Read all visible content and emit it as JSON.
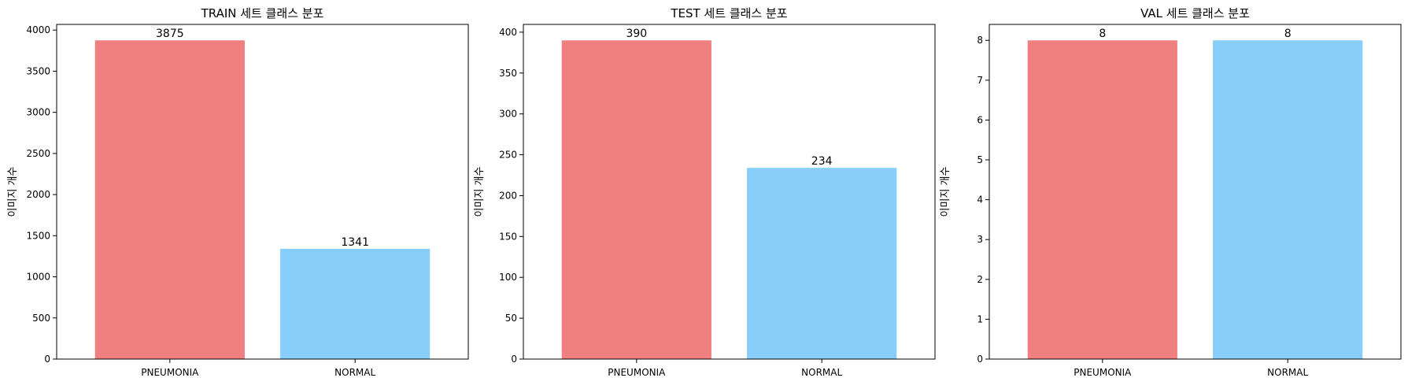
{
  "colors": {
    "pneumonia": "#F08080",
    "normal": "#87CEFA"
  },
  "chart_data": [
    {
      "type": "bar",
      "title": "TRAIN 세트 클래스 분포",
      "ylabel": "이미지 개수",
      "xlabel": "",
      "categories": [
        "PNEUMONIA",
        "NORMAL"
      ],
      "values": [
        3875,
        1341
      ],
      "ylim": [
        0,
        4068.75
      ],
      "yticks": [
        0,
        500,
        1000,
        1500,
        2000,
        2500,
        3000,
        3500,
        4000
      ],
      "grid": false
    },
    {
      "type": "bar",
      "title": "TEST 세트 클래스 분포",
      "ylabel": "이미지 개수",
      "xlabel": "",
      "categories": [
        "PNEUMONIA",
        "NORMAL"
      ],
      "values": [
        390,
        234
      ],
      "ylim": [
        0,
        409.5
      ],
      "yticks": [
        0,
        50,
        100,
        150,
        200,
        250,
        300,
        350,
        400
      ],
      "grid": false
    },
    {
      "type": "bar",
      "title": "VAL 세트 클래스 분포",
      "ylabel": "이미지 개수",
      "xlabel": "",
      "categories": [
        "PNEUMONIA",
        "NORMAL"
      ],
      "values": [
        8,
        8
      ],
      "ylim": [
        0,
        8.4
      ],
      "yticks": [
        0,
        1,
        2,
        3,
        4,
        5,
        6,
        7,
        8
      ],
      "grid": false
    }
  ]
}
